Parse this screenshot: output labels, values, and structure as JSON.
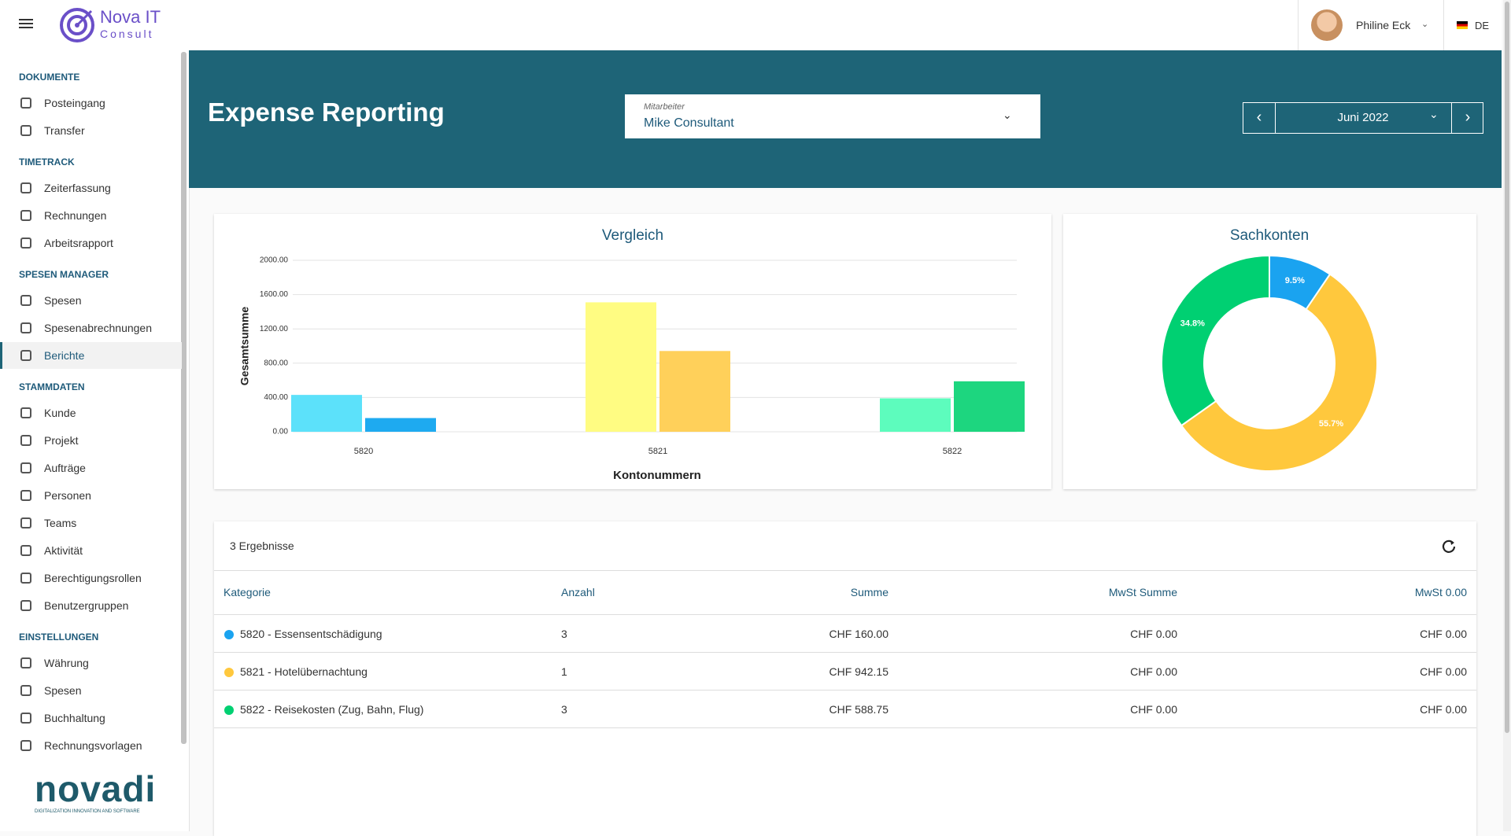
{
  "brand": {
    "name": "Nova IT",
    "sub": "Consult"
  },
  "header": {
    "user": "Philine Eck",
    "language": "DE"
  },
  "sidebar": {
    "active": [
      2,
      2
    ],
    "sections": [
      {
        "title": "DOKUMENTE",
        "items": [
          "Posteingang",
          "Transfer"
        ]
      },
      {
        "title": "TIMETRACK",
        "items": [
          "Zeiterfassung",
          "Rechnungen",
          "Arbeitsrapport"
        ]
      },
      {
        "title": "SPESEN MANAGER",
        "items": [
          "Spesen",
          "Spesenabrechnungen",
          "Berichte"
        ]
      },
      {
        "title": "STAMMDATEN",
        "items": [
          "Kunde",
          "Projekt",
          "Aufträge",
          "Personen",
          "Teams",
          "Aktivität",
          "Berechtigungsrollen",
          "Benutzergruppen"
        ]
      },
      {
        "title": "EINSTELLUNGEN",
        "items": [
          "Währung",
          "Spesen",
          "Buchhaltung",
          "Rechnungsvorlagen"
        ]
      }
    ],
    "footer": {
      "logo": "novadi",
      "tagline": "DIGITALIZATION INNOVATION AND SOFTWARE"
    }
  },
  "banner": {
    "title": "Expense Reporting",
    "employee_label": "Mitarbeiter",
    "employee": "Mike Consultant",
    "period": "Juni 2022"
  },
  "chart_data": [
    {
      "type": "bar",
      "title": "Vergleich",
      "x_label": "Kontonummern",
      "y_label": "Gesamtsumme",
      "categories": [
        "5820",
        "5821",
        "5822"
      ],
      "series": [
        {
          "colors": [
            "#5ce1fa",
            "#fffc82",
            "#5dfcbd"
          ],
          "values": [
            430,
            1510,
            390
          ]
        },
        {
          "colors": [
            "#1eaaf0",
            "#ffd05a",
            "#1dd67f"
          ],
          "values": [
            160,
            942.15,
            588.75
          ]
        }
      ],
      "ylim": [
        0,
        2000
      ],
      "yticks": [
        {
          "value": 0,
          "label": "0.00"
        },
        {
          "value": 400,
          "label": "400.00"
        },
        {
          "value": 800,
          "label": "800.00"
        },
        {
          "value": 1200,
          "label": "1200.00"
        },
        {
          "value": 1600,
          "label": "1600.00"
        },
        {
          "value": 2000,
          "label": "2000.00"
        }
      ],
      "grid": true
    },
    {
      "type": "pie",
      "title": "Sachkonten",
      "values": [
        9.5,
        55.7,
        34.8
      ],
      "value_labels": [
        "9.5%",
        "55.7%",
        "34.8%"
      ],
      "colors": [
        "#1aa3f0",
        "#ffc83d",
        "#00d072"
      ],
      "donut": true
    }
  ],
  "table": {
    "count": "3 Ergebnisse",
    "columns": [
      "Kategorie",
      "Anzahl",
      "Summe",
      "MwSt Summe",
      "MwSt 0.00"
    ],
    "rows": [
      {
        "color": "#1aa3f0",
        "cells": [
          "5820 - Essensentschädigung",
          "3",
          "CHF 160.00",
          "CHF 0.00",
          "CHF 0.00"
        ]
      },
      {
        "color": "#ffc83d",
        "cells": [
          "5821 - Hotelübernachtung",
          "1",
          "CHF 942.15",
          "CHF 0.00",
          "CHF 0.00"
        ]
      },
      {
        "color": "#00d072",
        "cells": [
          "5822 - Reisekosten (Zug, Bahn, Flug)",
          "3",
          "CHF 588.75",
          "CHF 0.00",
          "CHF 0.00"
        ]
      }
    ]
  }
}
